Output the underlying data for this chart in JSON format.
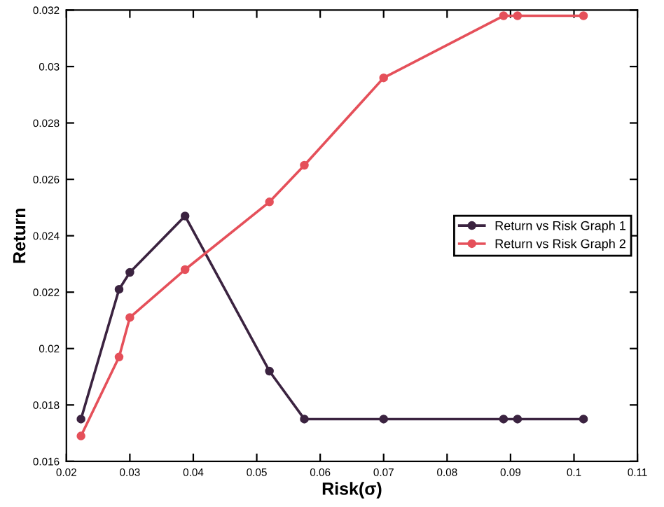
{
  "chart_data": {
    "type": "line",
    "xlabel": "Risk(σ)",
    "ylabel": "Return",
    "x": [
      0.0223,
      0.0283,
      0.03,
      0.0387,
      0.052,
      0.0575,
      0.07,
      0.0889,
      0.0911,
      0.1015
    ],
    "series": [
      {
        "name": "Return vs Risk Graph 1",
        "color": "#3b2340",
        "values": [
          0.0175,
          0.0221,
          0.0227,
          0.0247,
          0.0192,
          0.0175,
          0.0175,
          0.0175,
          0.0175,
          0.0175
        ]
      },
      {
        "name": "Return vs Risk Graph 2",
        "color": "#e5505a",
        "values": [
          0.0169,
          0.0197,
          0.0211,
          0.0228,
          0.0252,
          0.0265,
          0.0296,
          0.0318,
          0.0318,
          0.0318
        ]
      }
    ],
    "xlim": [
      0.02,
      0.11
    ],
    "xticks": [
      0.02,
      0.03,
      0.04,
      0.05,
      0.06,
      0.07,
      0.08,
      0.09,
      0.1,
      0.11
    ],
    "ylim": [
      0.016,
      0.032
    ],
    "yticks": [
      0.016,
      0.018,
      0.02,
      0.022,
      0.024,
      0.026,
      0.028,
      0.03,
      0.032
    ],
    "marker": "circle",
    "line_style": "solid",
    "grid": false,
    "legend": "right"
  }
}
